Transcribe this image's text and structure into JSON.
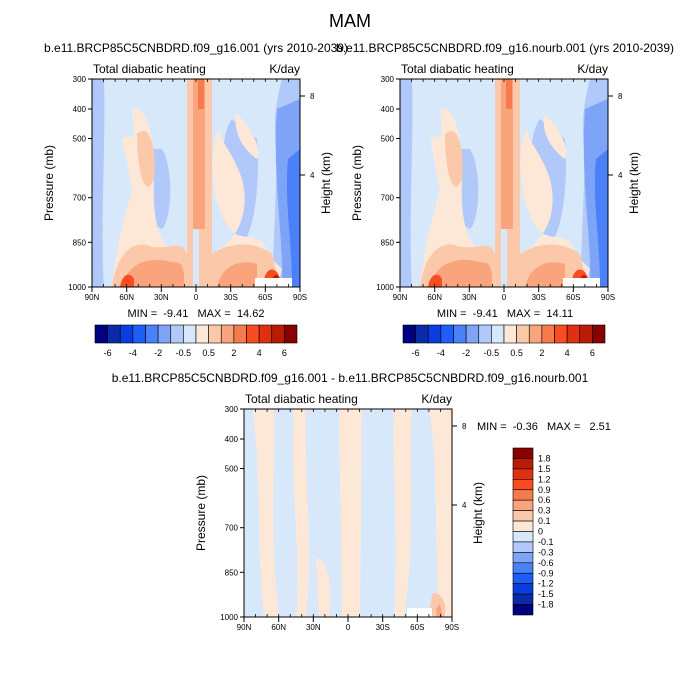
{
  "title": "MAM",
  "colors": {
    "top_colorbar": [
      "#000080",
      "#0a2aa8",
      "#0a3de0",
      "#1e5ef8",
      "#4a80f8",
      "#7ea4f8",
      "#b0c8fa",
      "#d8e8fb",
      "#fde8d8",
      "#fcc8aa",
      "#f9a47c",
      "#f57a4c",
      "#f84d20",
      "#e03010",
      "#b81c08",
      "#880000"
    ]
  },
  "chart_data": [
    {
      "type": "heatmap",
      "title": "b.e11.BRCP85C5CNBDRD.f09_g16.001 (yrs 2010-2039)",
      "left_label": "Total diabatic heating",
      "right_label": "K/day",
      "xlabel": "",
      "ylabel": "Pressure (mb)",
      "y2label": "Height (km)",
      "xticks": [
        "90N",
        "60N",
        "30N",
        "0",
        "30S",
        "60S",
        "90S"
      ],
      "yticks": [
        "300",
        "400",
        "500",
        "700",
        "850",
        "1000"
      ],
      "y2ticks": [
        "8",
        "4"
      ],
      "stats": "MIN =  -9.41   MAX =  14.62",
      "colorbar_labels": [
        "-6",
        "-4",
        "-2",
        "-0.5",
        "0.5",
        "2",
        "4",
        "6"
      ],
      "levels": [
        -6,
        -5,
        -4,
        -3,
        -2,
        -1,
        -0.5,
        0,
        0.5,
        1,
        2,
        3,
        4,
        5,
        6
      ]
    },
    {
      "type": "heatmap",
      "title": "b.e11.BRCP85C5CNBDRD.f09_g16.nourb.001 (yrs 2010-2039)",
      "left_label": "Total diabatic heating",
      "right_label": "K/day",
      "xlabel": "",
      "ylabel": "Pressure (mb)",
      "y2label": "Height (km)",
      "xticks": [
        "90N",
        "60N",
        "30N",
        "0",
        "30S",
        "60S",
        "90S"
      ],
      "yticks": [
        "300",
        "400",
        "500",
        "700",
        "850",
        "1000"
      ],
      "y2ticks": [
        "8",
        "4"
      ],
      "stats": "MIN =  -9.41   MAX =  14.11",
      "colorbar_labels": [
        "-6",
        "-4",
        "-2",
        "-0.5",
        "0.5",
        "2",
        "4",
        "6"
      ],
      "levels": [
        -6,
        -5,
        -4,
        -3,
        -2,
        -1,
        -0.5,
        0,
        0.5,
        1,
        2,
        3,
        4,
        5,
        6
      ]
    },
    {
      "type": "heatmap",
      "title": "b.e11.BRCP85C5CNBDRD.f09_g16.001 - b.e11.BRCP85C5CNBDRD.f09_g16.nourb.001",
      "left_label": "Total diabatic heating",
      "right_label": "K/day",
      "xlabel": "",
      "ylabel": "Pressure (mb)",
      "y2label": "Height (km)",
      "xticks": [
        "90N",
        "60N",
        "30N",
        "0",
        "30S",
        "60S",
        "90S"
      ],
      "yticks": [
        "300",
        "400",
        "500",
        "700",
        "850",
        "1000"
      ],
      "y2ticks": [
        "8",
        "4"
      ],
      "stats": "MIN =  -0.36   MAX =   2.51",
      "colorbar_labels": [
        "1.8",
        "1.5",
        "1.2",
        "0.9",
        "0.6",
        "0.3",
        "0.1",
        "0",
        "-0.1",
        "-0.3",
        "-0.6",
        "-0.9",
        "-1.2",
        "-1.5",
        "-1.8"
      ],
      "levels": [
        -1.8,
        -1.5,
        -1.2,
        -0.9,
        -0.6,
        -0.3,
        -0.1,
        0,
        0.1,
        0.3,
        0.6,
        0.9,
        1.2,
        1.5,
        1.8
      ]
    }
  ]
}
